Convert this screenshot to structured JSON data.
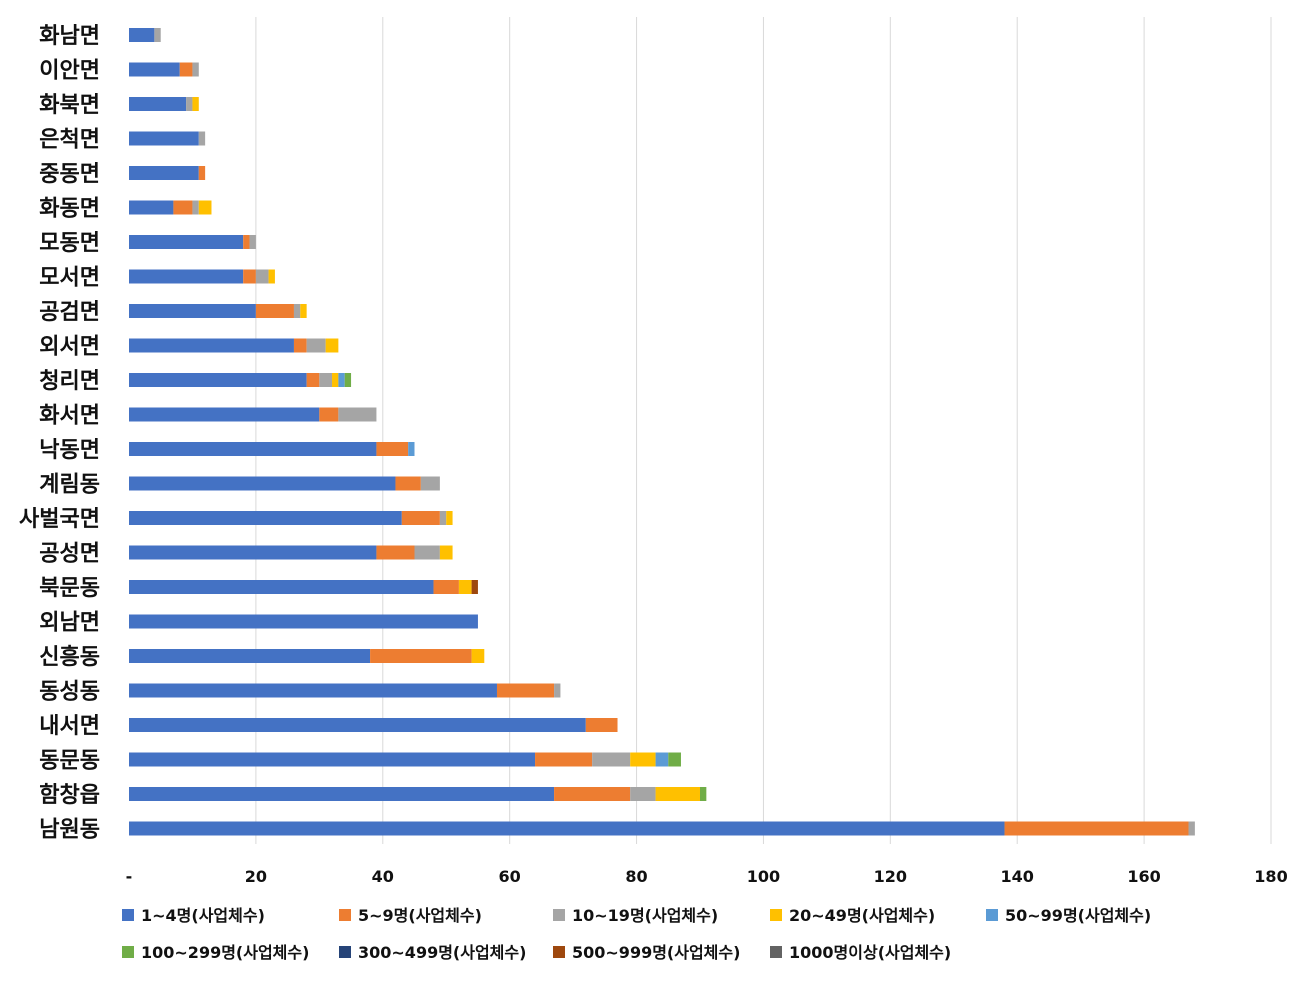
{
  "chart_data": {
    "type": "bar",
    "orientation": "horizontal",
    "stacked": true,
    "title": "",
    "xlabel": "",
    "ylabel": "",
    "xlim": [
      0,
      180
    ],
    "x_ticks": [
      0,
      20,
      40,
      60,
      80,
      100,
      120,
      140,
      160,
      180
    ],
    "x_tick_labels": [
      "-",
      "20",
      "40",
      "60",
      "80",
      "100",
      "120",
      "140",
      "160",
      "180"
    ],
    "grid": "vertical",
    "legend_position": "bottom",
    "categories": [
      "화남면",
      "이안면",
      "화북면",
      "은척면",
      "중동면",
      "화동면",
      "모동면",
      "모서면",
      "공검면",
      "외서면",
      "청리면",
      "화서면",
      "낙동면",
      "계림동",
      "사벌국면",
      "공성면",
      "북문동",
      "외남면",
      "신흥동",
      "동성동",
      "내서면",
      "동문동",
      "함창읍",
      "남원동"
    ],
    "series": [
      {
        "name": "1~4명(사업체수)",
        "color": "#4472C4",
        "values": [
          4,
          8,
          9,
          11,
          11,
          7,
          18,
          18,
          20,
          26,
          28,
          30,
          39,
          42,
          43,
          39,
          48,
          55,
          38,
          58,
          72,
          64,
          67,
          138
        ]
      },
      {
        "name": "5~9명(사업체수)",
        "color": "#ED7D31",
        "values": [
          0,
          2,
          0,
          0,
          1,
          3,
          1,
          2,
          6,
          2,
          2,
          3,
          5,
          4,
          6,
          6,
          4,
          0,
          16,
          9,
          5,
          9,
          12,
          29
        ]
      },
      {
        "name": "10~19명(사업체수)",
        "color": "#A5A5A5",
        "values": [
          1,
          1,
          1,
          1,
          0,
          1,
          1,
          2,
          1,
          3,
          2,
          6,
          0,
          3,
          1,
          4,
          0,
          0,
          0,
          1,
          0,
          6,
          4,
          1
        ]
      },
      {
        "name": "20~49명(사업체수)",
        "color": "#FFC000",
        "values": [
          0,
          0,
          1,
          0,
          0,
          2,
          0,
          1,
          1,
          2,
          1,
          0,
          0,
          0,
          1,
          2,
          2,
          0,
          2,
          0,
          0,
          4,
          7,
          0
        ]
      },
      {
        "name": "50~99명(사업체수)",
        "color": "#5B9BD5",
        "values": [
          0,
          0,
          0,
          0,
          0,
          0,
          0,
          0,
          0,
          0,
          1,
          0,
          1,
          0,
          0,
          0,
          0,
          0,
          0,
          0,
          0,
          2,
          0,
          0
        ]
      },
      {
        "name": "100~299명(사업체수)",
        "color": "#70AD47",
        "values": [
          0,
          0,
          0,
          0,
          0,
          0,
          0,
          0,
          0,
          0,
          1,
          0,
          0,
          0,
          0,
          0,
          0,
          0,
          0,
          0,
          0,
          2,
          1,
          0
        ]
      },
      {
        "name": "300~499명(사업체수)",
        "color": "#264478",
        "values": [
          0,
          0,
          0,
          0,
          0,
          0,
          0,
          0,
          0,
          0,
          0,
          0,
          0,
          0,
          0,
          0,
          0,
          0,
          0,
          0,
          0,
          0,
          0,
          0
        ]
      },
      {
        "name": "500~999명(사업체수)",
        "color": "#9E480E",
        "values": [
          0,
          0,
          0,
          0,
          0,
          0,
          0,
          0,
          0,
          0,
          0,
          0,
          0,
          0,
          0,
          0,
          1,
          0,
          0,
          0,
          0,
          0,
          0,
          0
        ]
      },
      {
        "name": "1000명이상(사업체수)",
        "color": "#636363",
        "values": [
          0,
          0,
          0,
          0,
          0,
          0,
          0,
          0,
          0,
          0,
          0,
          0,
          0,
          0,
          0,
          0,
          0,
          0,
          0,
          0,
          0,
          0,
          0,
          0
        ]
      }
    ]
  }
}
